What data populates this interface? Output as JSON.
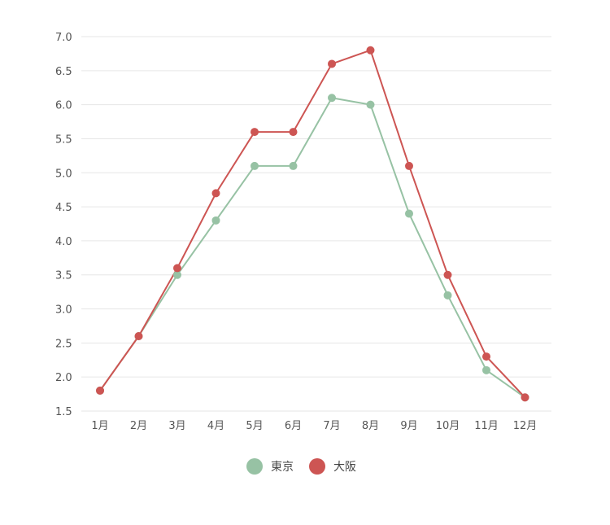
{
  "chart_data": {
    "type": "line",
    "categories": [
      "1月",
      "2月",
      "3月",
      "4月",
      "5月",
      "6月",
      "7月",
      "8月",
      "9月",
      "10月",
      "11月",
      "12月"
    ],
    "series": [
      {
        "name": "東京",
        "color": "#97c2a4",
        "values": [
          1.8,
          2.6,
          3.5,
          4.3,
          5.1,
          5.1,
          6.1,
          6.0,
          4.4,
          3.2,
          2.1,
          1.7
        ]
      },
      {
        "name": "大阪",
        "color": "#cd5553",
        "values": [
          1.8,
          2.6,
          3.6,
          4.7,
          5.6,
          5.6,
          6.6,
          6.8,
          5.1,
          3.5,
          2.3,
          1.7
        ]
      }
    ],
    "yticks": [
      "1.5",
      "2.0",
      "2.5",
      "3.0",
      "3.5",
      "4.0",
      "4.5",
      "5.0",
      "5.5",
      "6.0",
      "6.5",
      "7.0"
    ],
    "ylim": [
      1.5,
      7.0
    ],
    "grid": true,
    "legend_position": "bottom-center",
    "title": "",
    "xlabel": "",
    "ylabel": ""
  }
}
